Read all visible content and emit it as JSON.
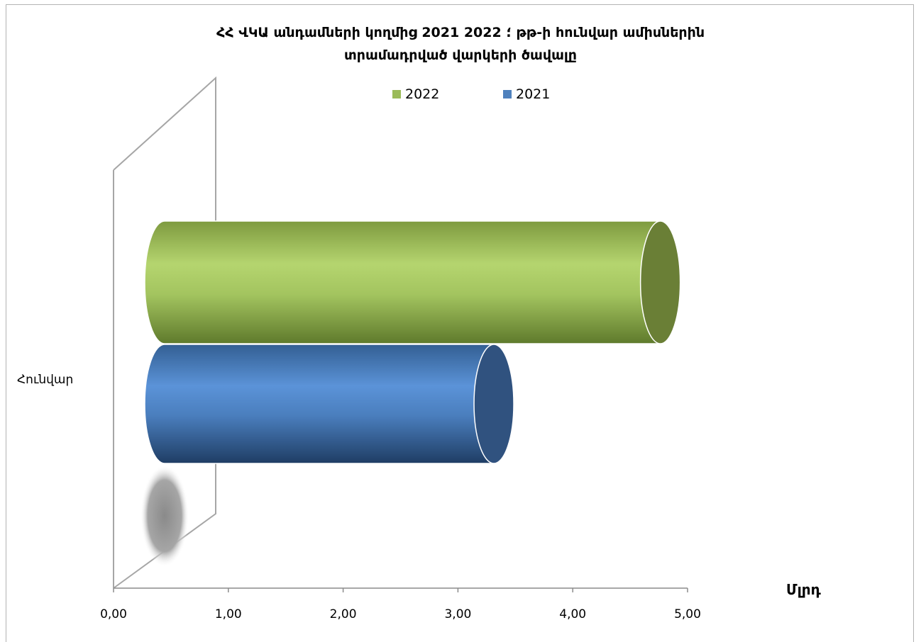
{
  "chart_data": {
    "type": "bar",
    "orientation": "horizontal",
    "style": "3d-cylinder",
    "title_lines": [
      "ՀՀ ՎԿԱ անդամների կողմից 2021 ؛ 2022 թթ-ի հունվար  ամիսներին",
      "տրամադրված վարկերի ծավալը"
    ],
    "categories": [
      "Հունվար"
    ],
    "series": [
      {
        "name": "2022",
        "values": [
          4.8
        ],
        "color": "#9bbb59"
      },
      {
        "name": "2021",
        "values": [
          3.35
        ],
        "color": "#4f81bd"
      }
    ],
    "xlim": [
      0,
      5
    ],
    "x_ticks": [
      "0,00",
      "1,00",
      "2,00",
      "3,00",
      "4,00",
      "5,00"
    ],
    "x_unit": "Մլրդ",
    "legend_position": "top",
    "grid": false
  }
}
